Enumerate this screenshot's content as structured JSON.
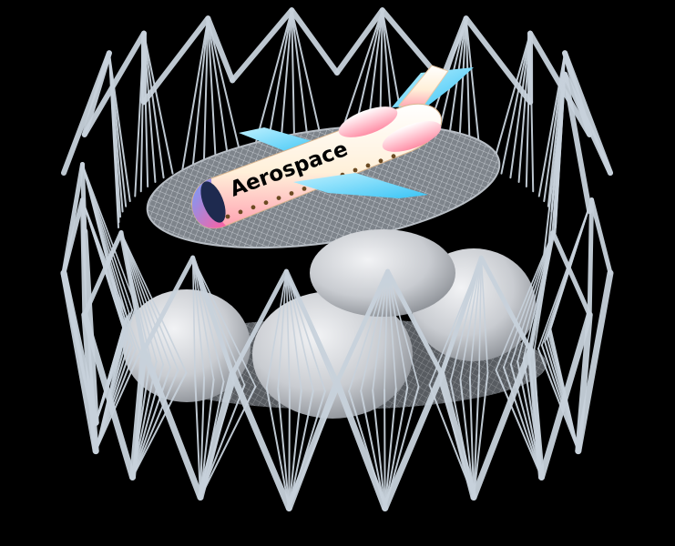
{
  "scene": {
    "background": "#000000",
    "strut_color": "#c8d2dc",
    "balloon_color": "#d6d9dd",
    "deck_color": "#9aa0a6",
    "plane_label": "Aerospace",
    "plane_colors": {
      "fuselage": "#fff6e6",
      "fuselage_shade": "#ff9fb0",
      "wing": "#66d9ff",
      "nose": "#2a3a66",
      "window": "#6b4a22"
    }
  }
}
